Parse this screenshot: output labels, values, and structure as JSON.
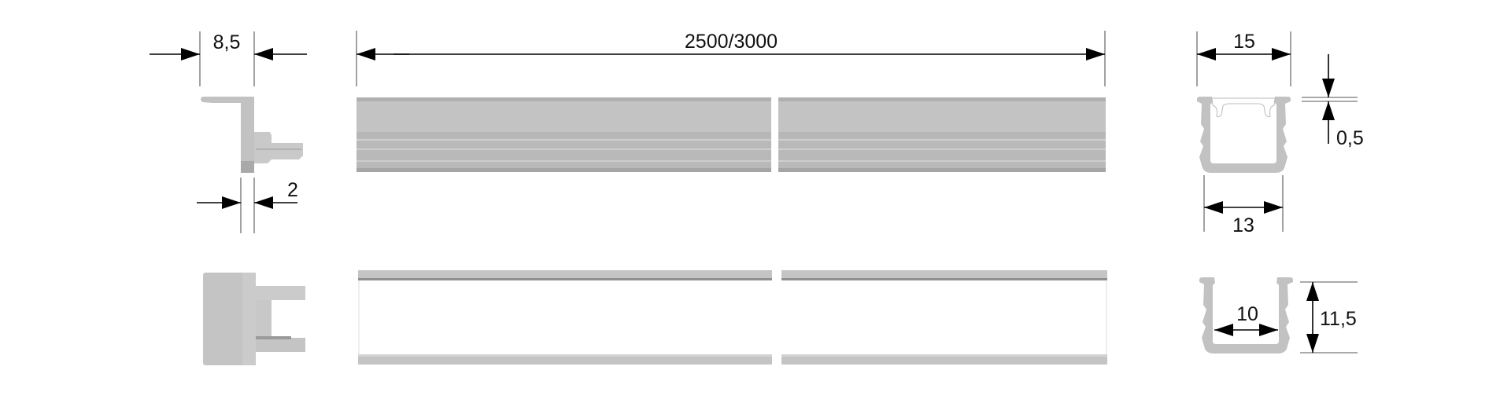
{
  "colors": {
    "profile": "#c2c2c2",
    "profile_dark": "#a9a9a9",
    "profile_light": "#d0d0d0",
    "dimension": "#000000"
  },
  "dimensions": {
    "end_cap_width": "8,5",
    "end_cap_wall": "2",
    "length": "2500/3000",
    "outer_width": "15",
    "lens_offset": "0,5",
    "bottom_width": "13",
    "inner_width": "10",
    "height": "11,5"
  }
}
